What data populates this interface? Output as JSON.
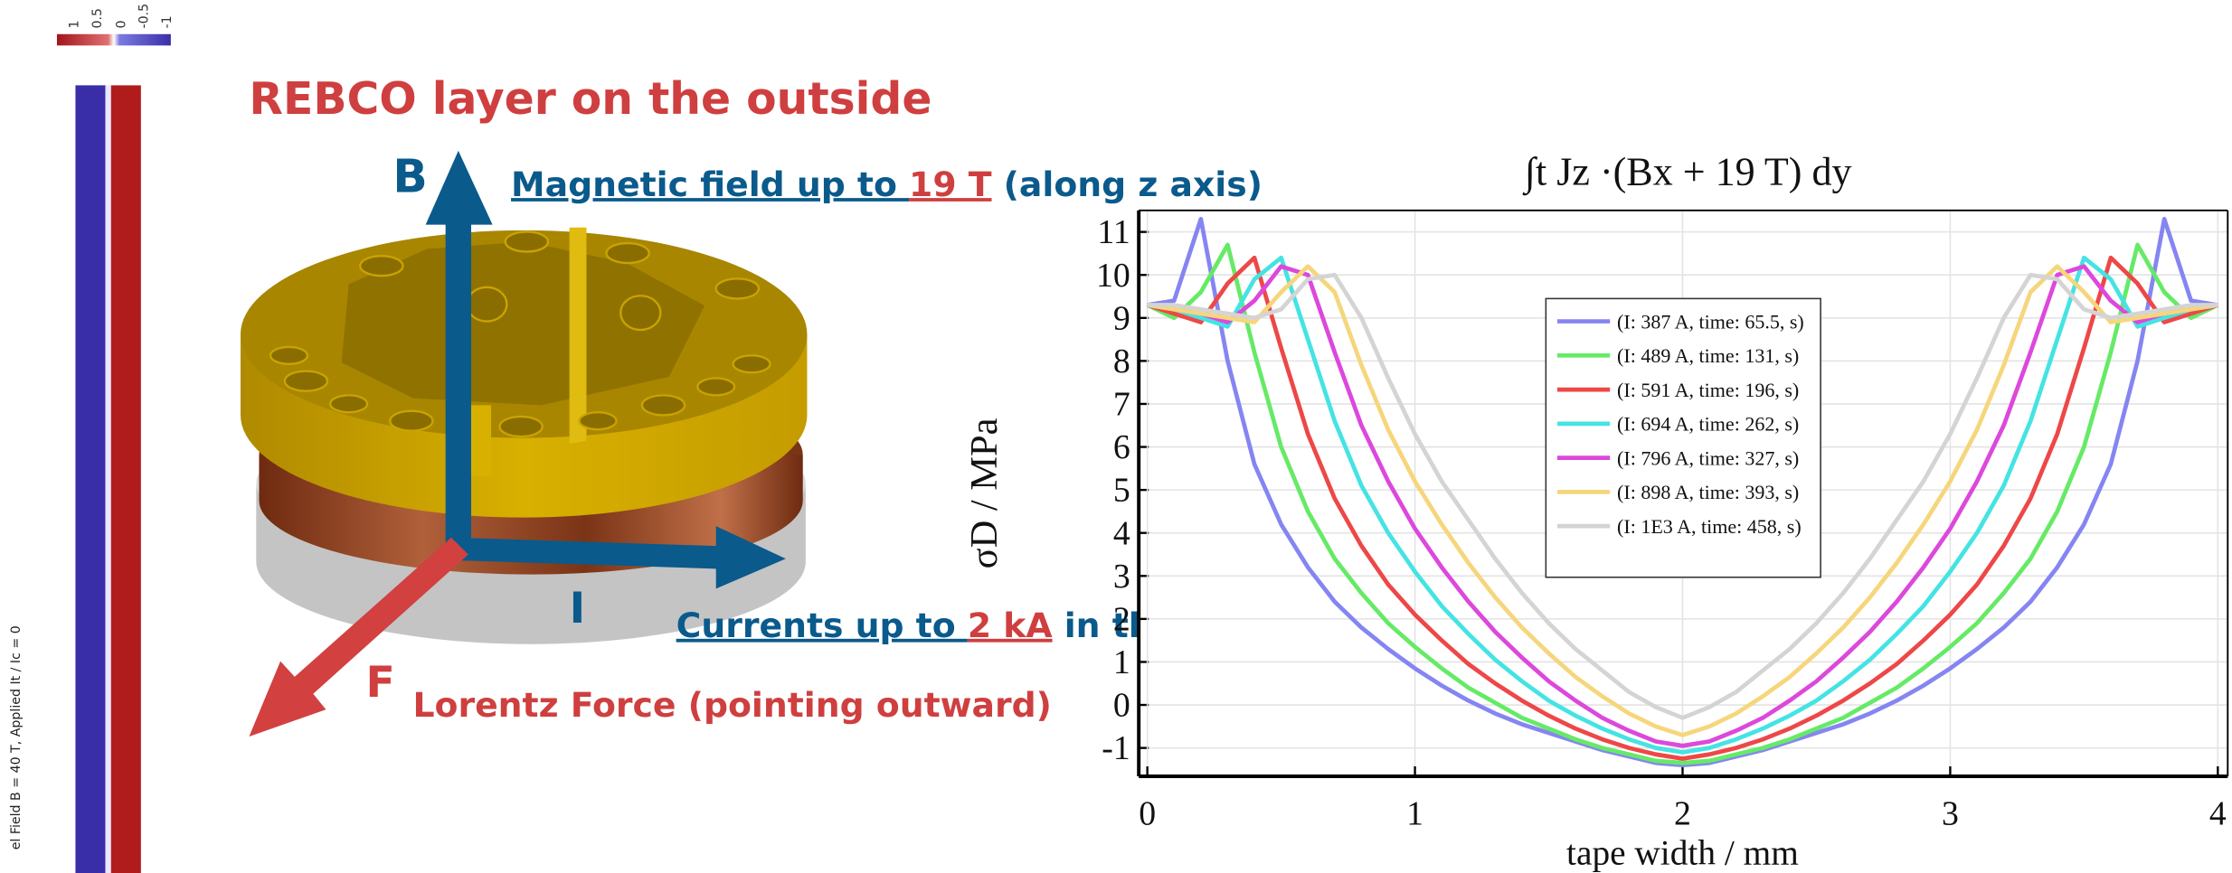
{
  "colorbar": {
    "ticks": [
      "1",
      "0.5",
      "0",
      "-0.5",
      "-1"
    ],
    "caption": "el Field B = 40 T, Applied It / Ic = 0"
  },
  "illustration": {
    "heading": "REBCO layer on the outside",
    "b_label": "B",
    "field_text": [
      "Magnetic field up to ",
      "19 T",
      " (along z axis)"
    ],
    "i_label": "I",
    "current_text": [
      "Currents up to ",
      "2 kA",
      " in the xy plane"
    ],
    "f_label": "F",
    "force_text": "Lorentz Force (pointing outward)"
  },
  "chart_data": {
    "type": "line",
    "title": "∫t Jz ·(Bx + 19 T)  dy",
    "x_label": "tape width / mm",
    "y_label": "σD / MPa",
    "xlim": [
      -0.032,
      4.037
    ],
    "ylim": [
      -1.66,
      11.5
    ],
    "xticks": [
      0,
      1,
      2,
      3,
      4
    ],
    "yticks": [
      -1,
      0,
      1,
      2,
      3,
      4,
      5,
      6,
      7,
      8,
      9,
      10,
      11
    ],
    "grid": true,
    "legend": "upper center",
    "x": [
      0,
      0.1,
      0.2,
      0.3,
      0.4,
      0.5,
      0.6,
      0.7,
      0.8,
      0.9,
      1,
      1.1,
      1.2,
      1.3,
      1.4,
      1.5,
      1.6,
      1.7,
      1.8,
      1.9,
      2,
      2.1,
      2.2,
      2.3,
      2.4,
      2.5,
      2.6,
      2.7,
      2.8,
      2.9,
      3,
      3.1,
      3.2,
      3.3,
      3.4,
      3.5,
      3.6,
      3.7,
      3.8,
      3.9,
      4
    ],
    "series": [
      {
        "name": "(I: 387 A, time: 65.5, s)",
        "color": "#8585f2",
        "values": [
          9.3,
          9.4,
          11.3,
          8.0,
          5.6,
          4.2,
          3.2,
          2.4,
          1.8,
          1.3,
          0.85,
          0.45,
          0.1,
          -0.2,
          -0.45,
          -0.65,
          -0.85,
          -1.05,
          -1.2,
          -1.35,
          -1.4,
          -1.35,
          -1.2,
          -1.05,
          -0.85,
          -0.65,
          -0.45,
          -0.2,
          0.1,
          0.45,
          0.85,
          1.3,
          1.8,
          2.4,
          3.2,
          4.2,
          5.6,
          8.0,
          11.3,
          9.4,
          9.3
        ]
      },
      {
        "name": "(I: 489 A, time: 131, s)",
        "color": "#66ea66",
        "values": [
          9.3,
          9.0,
          9.6,
          10.7,
          8.2,
          6.0,
          4.5,
          3.4,
          2.6,
          1.9,
          1.35,
          0.85,
          0.4,
          0.05,
          -0.3,
          -0.55,
          -0.8,
          -1.0,
          -1.15,
          -1.3,
          -1.35,
          -1.3,
          -1.15,
          -1.0,
          -0.8,
          -0.55,
          -0.3,
          0.05,
          0.4,
          0.85,
          1.35,
          1.9,
          2.6,
          3.4,
          4.5,
          6.0,
          8.2,
          10.7,
          9.6,
          9.0,
          9.3
        ]
      },
      {
        "name": "(I: 591 A, time: 196, s)",
        "color": "#ee4747",
        "values": [
          9.3,
          9.1,
          8.9,
          9.8,
          10.4,
          8.3,
          6.3,
          4.8,
          3.7,
          2.8,
          2.1,
          1.5,
          0.95,
          0.5,
          0.1,
          -0.25,
          -0.55,
          -0.8,
          -1.0,
          -1.15,
          -1.25,
          -1.15,
          -1.0,
          -0.8,
          -0.55,
          -0.25,
          0.1,
          0.5,
          0.95,
          1.5,
          2.1,
          2.8,
          3.7,
          4.8,
          6.3,
          8.3,
          10.4,
          9.8,
          8.9,
          9.1,
          9.3
        ]
      },
      {
        "name": "(I: 694 A, time: 262, s)",
        "color": "#45e3e3",
        "values": [
          9.3,
          9.2,
          9.0,
          8.8,
          9.9,
          10.4,
          8.5,
          6.6,
          5.1,
          4.0,
          3.1,
          2.3,
          1.65,
          1.05,
          0.55,
          0.1,
          -0.25,
          -0.55,
          -0.8,
          -1.0,
          -1.1,
          -1.0,
          -0.8,
          -0.55,
          -0.25,
          0.1,
          0.55,
          1.05,
          1.65,
          2.3,
          3.1,
          4.0,
          5.1,
          6.6,
          8.5,
          10.4,
          9.9,
          8.8,
          9.0,
          9.2,
          9.3
        ]
      },
      {
        "name": "(I: 796 A, time: 327, s)",
        "color": "#dc48dc",
        "values": [
          9.3,
          9.2,
          9.1,
          8.9,
          9.4,
          10.2,
          10.0,
          8.2,
          6.5,
          5.2,
          4.1,
          3.2,
          2.4,
          1.7,
          1.1,
          0.55,
          0.1,
          -0.3,
          -0.6,
          -0.85,
          -0.95,
          -0.85,
          -0.6,
          -0.3,
          0.1,
          0.55,
          1.1,
          1.7,
          2.4,
          3.2,
          4.1,
          5.2,
          6.5,
          8.2,
          10.0,
          10.2,
          9.4,
          8.9,
          9.1,
          9.2,
          9.3
        ]
      },
      {
        "name": "(I: 898 A, time: 393, s)",
        "color": "#f6d67c",
        "values": [
          9.3,
          9.2,
          9.1,
          9.0,
          8.9,
          9.6,
          10.2,
          9.6,
          7.9,
          6.4,
          5.2,
          4.2,
          3.3,
          2.5,
          1.8,
          1.2,
          0.65,
          0.2,
          -0.2,
          -0.5,
          -0.7,
          -0.5,
          -0.2,
          0.2,
          0.65,
          1.2,
          1.8,
          2.5,
          3.3,
          4.2,
          5.2,
          6.4,
          7.9,
          9.6,
          10.2,
          9.6,
          8.9,
          9.0,
          9.1,
          9.2,
          9.3
        ]
      },
      {
        "name": "(I: 1E3 A, time: 458, s)",
        "color": "#d4d4d4",
        "values": [
          9.3,
          9.3,
          9.2,
          9.1,
          9.0,
          9.2,
          9.9,
          10.0,
          9.0,
          7.6,
          6.3,
          5.2,
          4.3,
          3.4,
          2.6,
          1.9,
          1.3,
          0.8,
          0.3,
          -0.05,
          -0.3,
          -0.05,
          0.3,
          0.8,
          1.3,
          1.9,
          2.6,
          3.4,
          4.3,
          5.2,
          6.3,
          7.6,
          9.0,
          10.0,
          9.9,
          9.2,
          9.0,
          9.1,
          9.2,
          9.3,
          9.3
        ]
      }
    ]
  }
}
